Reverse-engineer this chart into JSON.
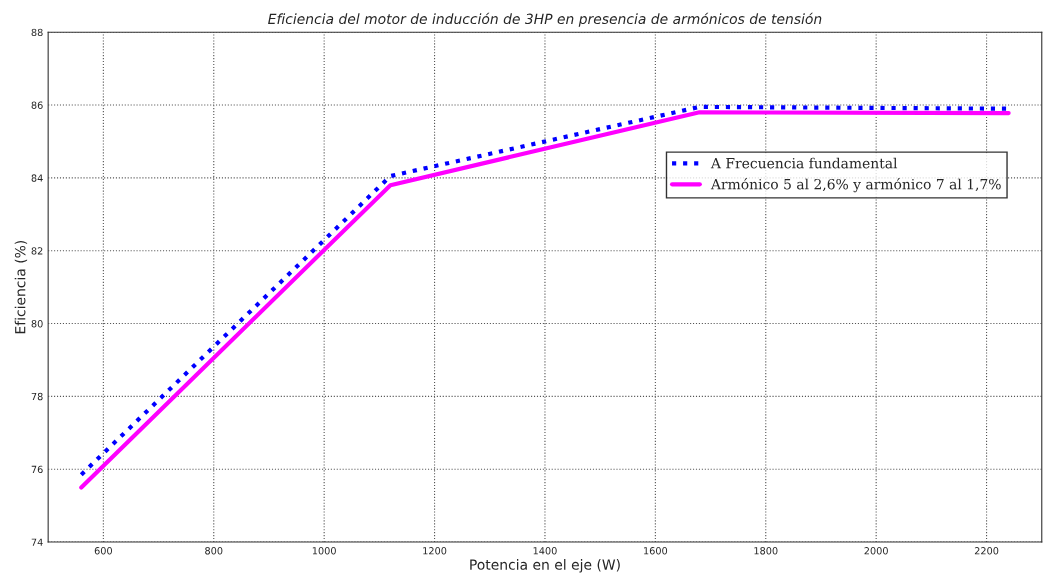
{
  "chart_data": {
    "type": "line",
    "title": "Eficiencia del motor de inducción de 3HP en presencia de armónicos de tensión",
    "xlabel": "Potencia en el eje (W)",
    "ylabel": "Eficiencia (%)",
    "x": [
      560,
      1120,
      1680,
      2240
    ],
    "series": [
      {
        "name": "A Frecuencia fundamental",
        "color": "#0000ff",
        "values": [
          75.85,
          84.05,
          85.95,
          85.9
        ],
        "line_style": "dotted"
      },
      {
        "name": "Armónico 5 al 2,6% y armónico 7 al 1,7%",
        "color": "#ff00ff",
        "values": [
          75.5,
          83.8,
          85.8,
          85.78
        ],
        "line_style": "solid"
      }
    ],
    "xlim": [
      500,
      2300
    ],
    "xticks": [
      600,
      800,
      1000,
      1200,
      1400,
      1600,
      1800,
      2000,
      2200
    ],
    "ylim": [
      74,
      88
    ],
    "yticks": [
      74,
      76,
      78,
      80,
      82,
      84,
      86,
      88
    ],
    "grid": true,
    "legend": "right",
    "marker": "none"
  }
}
